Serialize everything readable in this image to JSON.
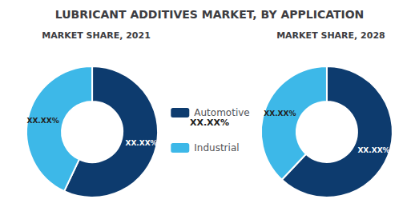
{
  "chart_data": [
    {
      "type": "pie",
      "title": "LUBRICANT ADDITIVES MARKET, BY APPLICATION",
      "subtitle": "MARKET SHARE, 2021",
      "categories": [
        "Automotive",
        "Industrial"
      ],
      "values": [
        57,
        43
      ],
      "value_labels": [
        "XX.XX%",
        "XX.XX%"
      ],
      "data_labels": true,
      "colors": [
        "#0d3b6e",
        "#3db8e8"
      ],
      "legend": "center",
      "annotations": [
        "XX.XX%"
      ]
    },
    {
      "type": "pie",
      "subtitle": "MARKET SHARE, 2028",
      "categories": [
        "Automotive",
        "Industrial"
      ],
      "values": [
        62,
        38
      ],
      "value_labels": [
        "XX.XX%",
        "XX.XX%"
      ],
      "data_labels": true,
      "colors": [
        "#0d3b6e",
        "#3db8e8"
      ]
    }
  ]
}
